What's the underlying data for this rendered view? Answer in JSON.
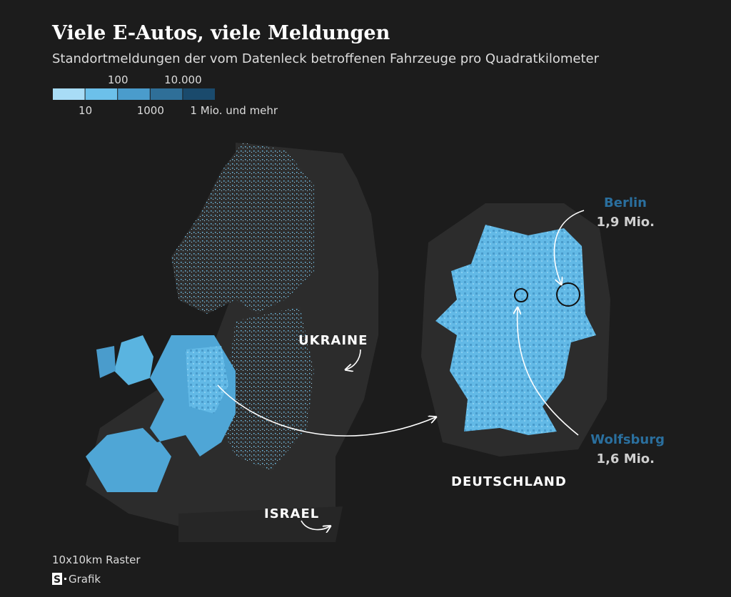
{
  "header": {
    "title": "Viele E-Autos, viele Meldungen",
    "subtitle": "Standortmeldungen der vom Datenleck betroffenen Fahrzeuge pro Quadratkilometer"
  },
  "legend": {
    "colors": [
      "#a8dcf6",
      "#6cc0ea",
      "#4a9ccc",
      "#2f6f98",
      "#1a4a6c"
    ],
    "labels": [
      "10",
      "100",
      "1000",
      "10.000",
      "1 Mio. und mehr"
    ]
  },
  "map": {
    "labels": {
      "ukraine": "UKRAINE",
      "israel": "ISRAEL",
      "germany": "DEUTSCHLAND"
    },
    "callouts": [
      {
        "city": "Berlin",
        "value": "1,9 Mio."
      },
      {
        "city": "Wolfsburg",
        "value": "1,6 Mio."
      }
    ]
  },
  "footer": {
    "note": "10x10km Raster",
    "logo": "S",
    "source": "Grafik"
  }
}
